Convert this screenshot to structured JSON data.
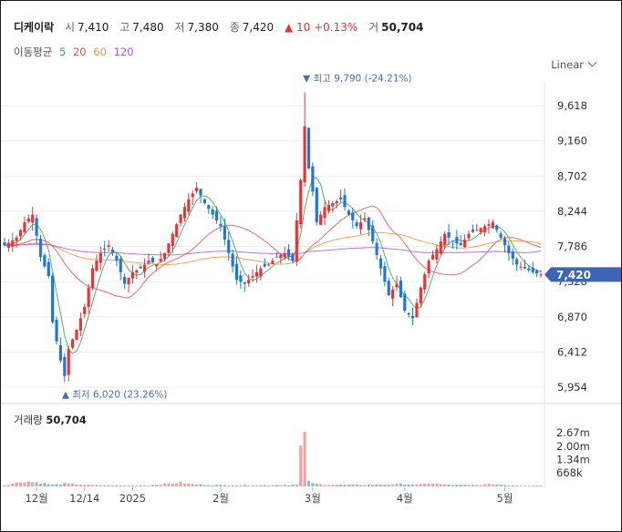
{
  "header": {
    "name": "디케이락",
    "open_label": "시",
    "open": "7,410",
    "high_label": "고",
    "high": "7,480",
    "low_label": "저",
    "low": "7,380",
    "close_label": "종",
    "close": "7,420",
    "change": "▲ 10 +0.13%",
    "volume_label": "거",
    "volume": "50,704"
  },
  "moving_averages": {
    "label": "이동평균",
    "periods": [
      {
        "period": "5",
        "color": "#3aa653"
      },
      {
        "period": "20",
        "color": "#e8514f"
      },
      {
        "period": "60",
        "color": "#f0923c"
      },
      {
        "period": "120",
        "color": "#a45ee0"
      }
    ]
  },
  "scale_selector": {
    "value": "Linear"
  },
  "price_tag": "7,420",
  "colors": {
    "up": "#e2373b",
    "down": "#1f78d1",
    "grid": "#eeeeee"
  },
  "chart_data": {
    "type": "candlestick",
    "y_ticks": [
      "9,618",
      "9,160",
      "8,702",
      "8,244",
      "7,786",
      "7,328",
      "6,870",
      "6,412",
      "5,954"
    ],
    "y_tick_values": [
      9618,
      9160,
      8702,
      8244,
      7786,
      7328,
      6870,
      6412,
      5954
    ],
    "x_ticks": [
      "12월",
      "12/14",
      "2025",
      "2월",
      "3월",
      "4월",
      "5월"
    ],
    "annotations": {
      "high": {
        "text": "최고 9,790 (-24.21%)",
        "value": 9790,
        "index": 75
      },
      "low": {
        "text": "최저 6,020 (23.26%)",
        "value": 6020,
        "index": 15
      }
    },
    "last_price": 7420,
    "volume": {
      "label": "거래량",
      "value": "50,704",
      "ticks": [
        "2.67m",
        "2.00m",
        "1.34m",
        "668k"
      ],
      "tick_values": [
        2670000,
        2000000,
        1340000,
        668000
      ]
    },
    "close_anchors": [
      [
        0,
        7800
      ],
      [
        3,
        7900
      ],
      [
        5,
        8100
      ],
      [
        7,
        8200
      ],
      [
        9,
        7650
      ],
      [
        11,
        7400
      ],
      [
        12,
        6800
      ],
      [
        14,
        6300
      ],
      [
        15,
        6100
      ],
      [
        16,
        6450
      ],
      [
        18,
        6700
      ],
      [
        20,
        7000
      ],
      [
        22,
        7500
      ],
      [
        24,
        7700
      ],
      [
        26,
        7800
      ],
      [
        28,
        7600
      ],
      [
        30,
        7300
      ],
      [
        32,
        7450
      ],
      [
        34,
        7500
      ],
      [
        36,
        7600
      ],
      [
        38,
        7550
      ],
      [
        40,
        7700
      ],
      [
        42,
        7950
      ],
      [
        44,
        8200
      ],
      [
        46,
        8400
      ],
      [
        48,
        8550
      ],
      [
        50,
        8350
      ],
      [
        52,
        8200
      ],
      [
        54,
        8050
      ],
      [
        56,
        7700
      ],
      [
        58,
        7350
      ],
      [
        60,
        7300
      ],
      [
        62,
        7400
      ],
      [
        64,
        7500
      ],
      [
        66,
        7550
      ],
      [
        68,
        7650
      ],
      [
        70,
        7700
      ],
      [
        72,
        7600
      ],
      [
        74,
        8650
      ],
      [
        75,
        9350
      ],
      [
        76,
        8800
      ],
      [
        77,
        8500
      ],
      [
        78,
        8100
      ],
      [
        80,
        8300
      ],
      [
        82,
        8350
      ],
      [
        84,
        8400
      ],
      [
        86,
        8200
      ],
      [
        88,
        8050
      ],
      [
        90,
        8150
      ],
      [
        92,
        7850
      ],
      [
        94,
        7500
      ],
      [
        96,
        7150
      ],
      [
        98,
        7300
      ],
      [
        100,
        6950
      ],
      [
        102,
        6850
      ],
      [
        104,
        7250
      ],
      [
        106,
        7600
      ],
      [
        108,
        7750
      ],
      [
        110,
        7950
      ],
      [
        112,
        7850
      ],
      [
        114,
        7800
      ],
      [
        116,
        7950
      ],
      [
        118,
        8000
      ],
      [
        120,
        8050
      ],
      [
        122,
        8100
      ],
      [
        124,
        7900
      ],
      [
        126,
        7700
      ],
      [
        128,
        7550
      ],
      [
        130,
        7500
      ],
      [
        132,
        7450
      ],
      [
        134,
        7420
      ]
    ],
    "volume_anchors": [
      [
        0,
        60000
      ],
      [
        5,
        260000
      ],
      [
        9,
        180000
      ],
      [
        12,
        90000
      ],
      [
        15,
        140000
      ],
      [
        22,
        70000
      ],
      [
        30,
        50000
      ],
      [
        36,
        60000
      ],
      [
        44,
        190000
      ],
      [
        46,
        130000
      ],
      [
        50,
        80000
      ],
      [
        58,
        60000
      ],
      [
        66,
        70000
      ],
      [
        73,
        90000
      ],
      [
        74,
        1850000
      ],
      [
        75,
        2220000
      ],
      [
        76,
        310000
      ],
      [
        77,
        140000
      ],
      [
        80,
        90000
      ],
      [
        90,
        80000
      ],
      [
        100,
        120000
      ],
      [
        104,
        90000
      ],
      [
        106,
        170000
      ],
      [
        110,
        90000
      ],
      [
        118,
        70000
      ],
      [
        122,
        120000
      ],
      [
        126,
        60000
      ],
      [
        130,
        40000
      ],
      [
        134,
        50704
      ]
    ]
  }
}
